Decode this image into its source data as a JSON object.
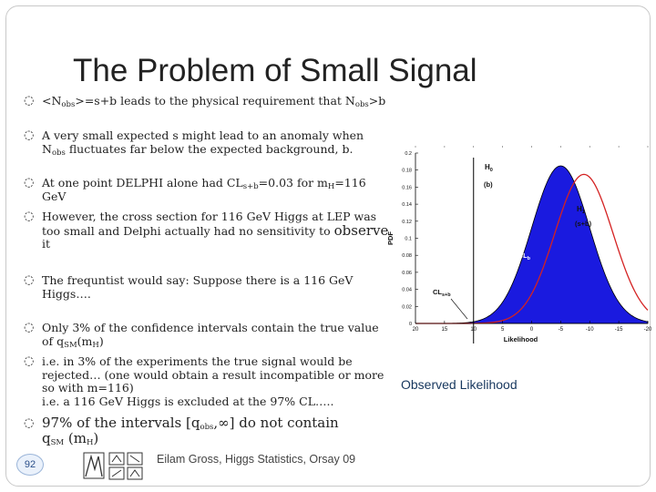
{
  "title": "The Problem of Small Signal",
  "bullets": {
    "b1": {
      "a": "<N",
      "sub1": "obs",
      "b": ">=s+b leads to the physical requirement that N",
      "sub2": "obs",
      "c": ">b"
    },
    "b2": {
      "l1": "A very small expected s might lead to an anomaly when",
      "l2a": "N",
      "l2sub": "obs",
      "l2b": " fluctuates far below the expected background, b."
    },
    "b3": {
      "a": "At one point DELPHI alone had CL",
      "sub1": "s+b",
      "b": "=0.03 for m",
      "sub2": "H",
      "c": "=116",
      "l2": "GeV"
    },
    "b4": {
      "l1": "However, the cross section for 116 GeV Higgs at LEP was",
      "l2a": "too small and Delphi actually had no sensitivity to ",
      "l2big": "observe",
      "l3": "it"
    },
    "b5": {
      "l1": "The frequntist would say: Suppose there is a 116 GeV",
      "l2": "Higgs…."
    },
    "b6": {
      "l1": "Only 3% of the confidence  intervals contain the true value",
      "l2a": "of q",
      "l2sub": "SM",
      "l2b": "(m",
      "l2sub2": "H",
      "l2c": ")"
    },
    "b7": {
      "l1": " i.e. in 3% of the experiments the true signal would be",
      "l2": "rejected… (one would obtain a result incompatible or more",
      "l3": "so with m=116)",
      "l4": "i.e. a 116 GeV Higgs is excluded at the 97% CL….."
    },
    "b8": {
      "l1a": " 97% of the intervals [q",
      "l1sub": "obs",
      "l1b": ",∞] do not contain",
      "l2a": "q",
      "l2sub": "SM",
      "l2b": " (m",
      "l2sub2": "H",
      "l2c": ")"
    }
  },
  "bullet_symbol": "",
  "chart_data": {
    "type": "area",
    "xlabel": "Likelihood",
    "ylabel": "PDF",
    "x_ticks": [
      "20",
      "15",
      "10",
      "5",
      "0",
      "-5",
      "-10",
      "-15",
      "-20"
    ],
    "y_ticks": [
      "0",
      "0.02",
      "0.04",
      "0.06",
      "0.08",
      "0.1",
      "0.12",
      "0.14",
      "0.16",
      "0.18",
      "0.2"
    ],
    "xlim": [
      20,
      -20
    ],
    "ylim": [
      0,
      0.2
    ],
    "series": [
      {
        "name": "H0 (b)",
        "label_top": "H",
        "label_sub": "0",
        "label_bottom": "(b)",
        "peak_x": -5,
        "peak_y": 0.185,
        "sigma": 5,
        "color": "#1a1adf",
        "filled": true
      },
      {
        "name": "H1 (s+b)",
        "label_top": "H",
        "label_sub": "1",
        "label_bottom": "(s+b)",
        "peak_x": -9,
        "peak_y": 0.175,
        "sigma": 5,
        "color": "#d42222",
        "filled": false
      }
    ],
    "observed_x": 10,
    "annotations": {
      "one_minus_clb": "1-CL",
      "one_minus_clb_sub": "b",
      "cl_sb": "CL",
      "cl_sb_sub": "s+b"
    },
    "observed_label": "Observed Likelihood"
  },
  "footer": "Eilam Gross, Higgs Statistics, Orsay 09",
  "page_number": "92",
  "colors": {
    "fill": "#1a1adf",
    "curve2": "#d42222",
    "observed_text": "#17375e"
  }
}
